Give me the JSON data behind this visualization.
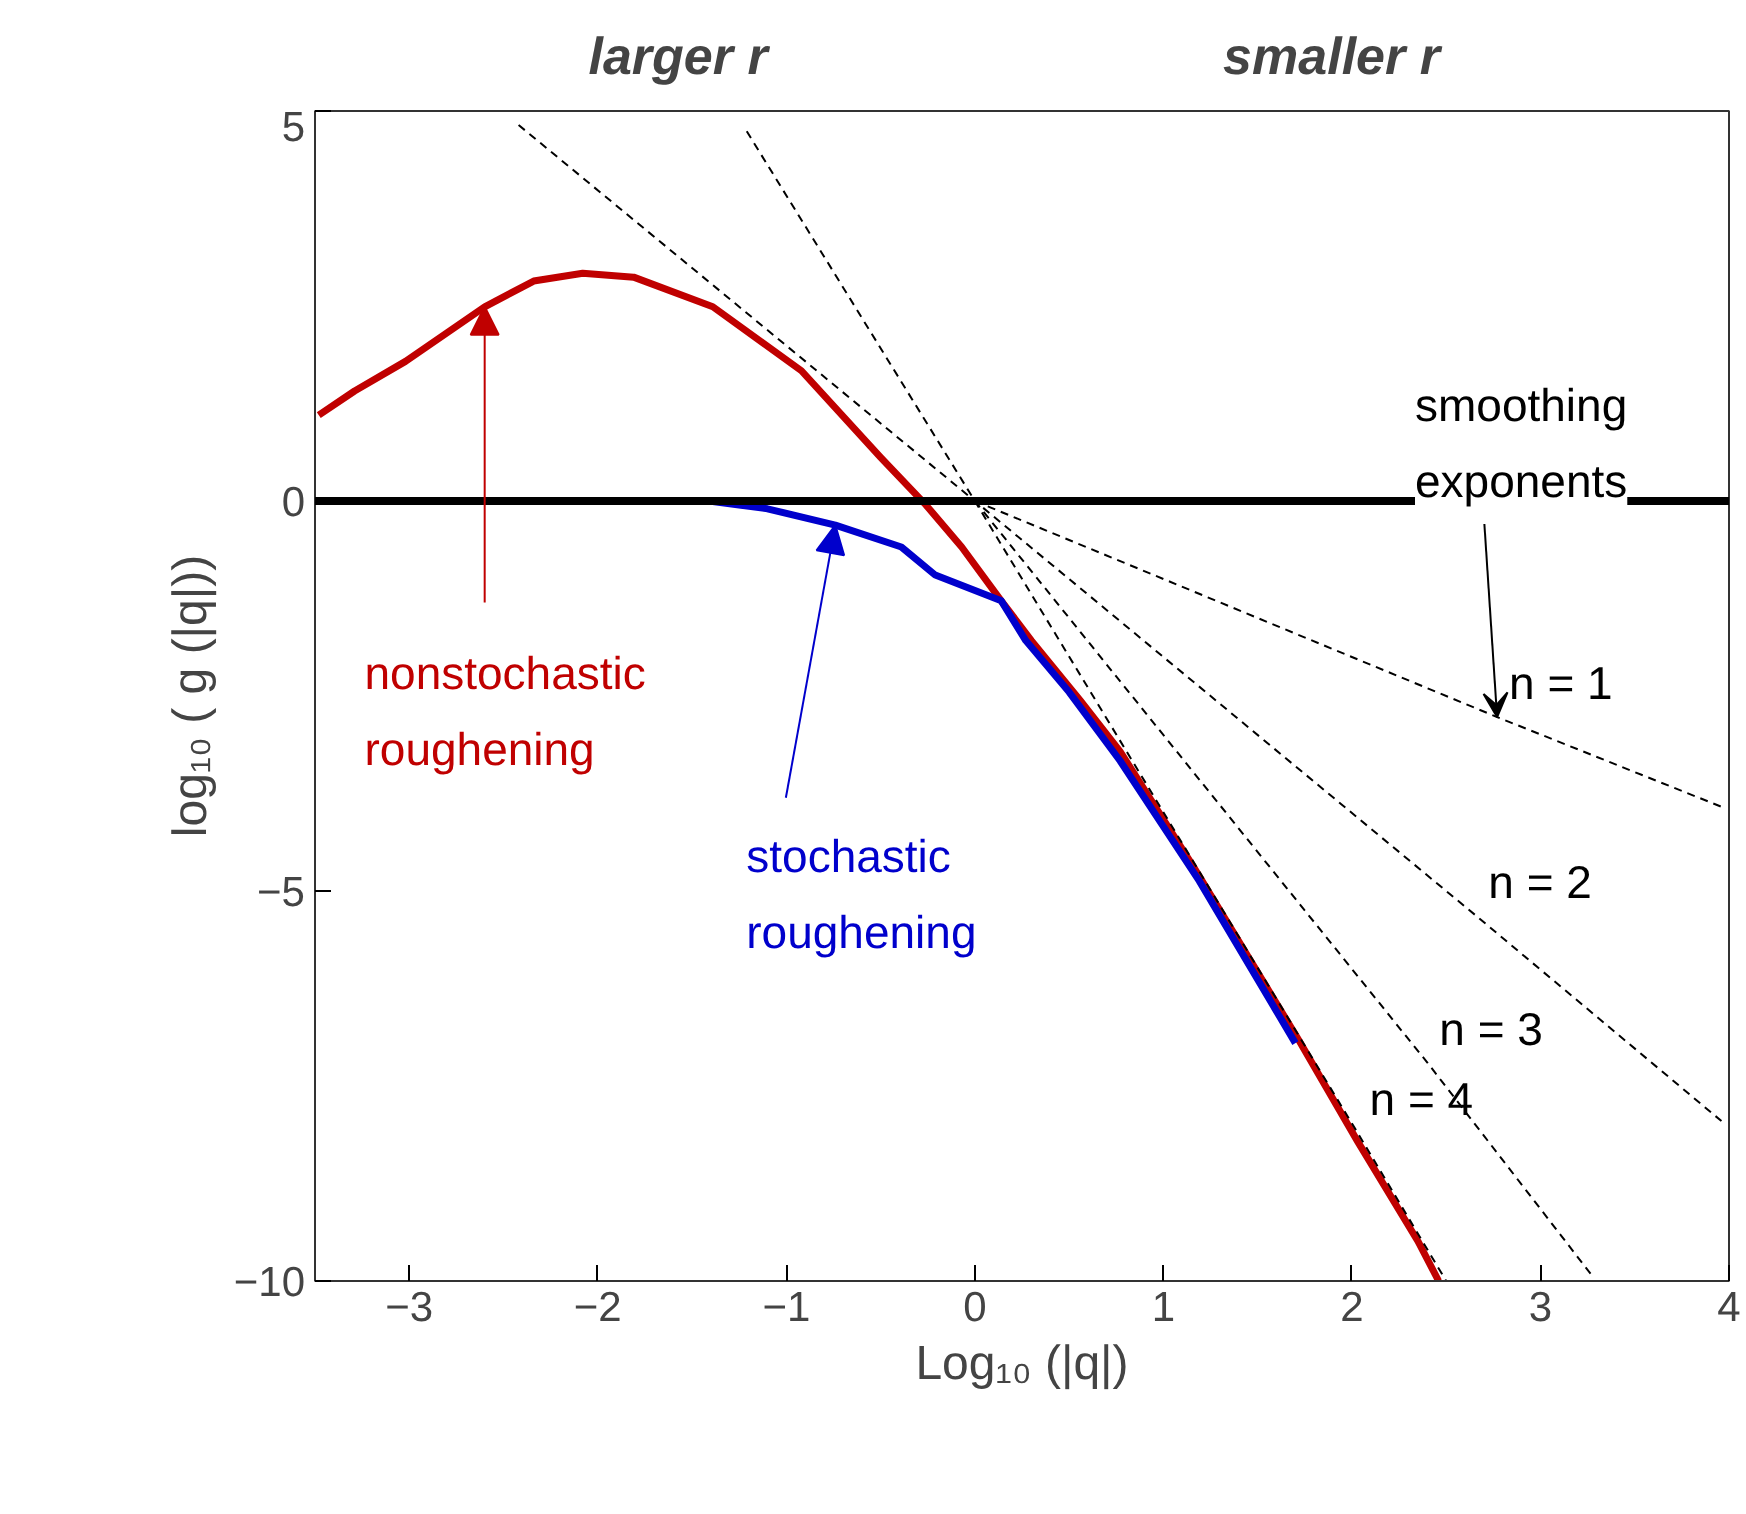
{
  "chart_data": {
    "type": "line",
    "xlabel": "Log₁₀ (|q|)",
    "ylabel": "log₁₀ ( g (|q|))",
    "xlim": [
      -3.5,
      4
    ],
    "ylim": [
      -10,
      5
    ],
    "xticks": [
      -3,
      -2,
      -1,
      0,
      1,
      2,
      3,
      4
    ],
    "yticks": [
      -10,
      -5,
      0,
      5
    ],
    "grid": false,
    "marker": "none",
    "ref_lines": [
      {
        "axis": "y",
        "value": 0,
        "color": "#000000",
        "line_style": "solid"
      }
    ],
    "series": [
      {
        "color": "#c00000",
        "x": [
          -3.48,
          -3.29,
          -3.02,
          -2.6,
          -2.34,
          -2.08,
          -1.81,
          -1.39,
          -0.92,
          -0.5,
          -0.26,
          -0.07,
          0.14,
          0.3,
          0.56,
          0.77,
          1.16,
          1.72,
          2.03,
          2.35,
          2.46
        ],
        "values": [
          1.1,
          1.41,
          1.79,
          2.49,
          2.82,
          2.92,
          2.87,
          2.49,
          1.67,
          0.56,
          -0.05,
          -0.59,
          -1.28,
          -1.79,
          -2.56,
          -3.21,
          -4.69,
          -6.92,
          -8.21,
          -9.49,
          -10
        ]
      },
      {
        "color": "#0000cc",
        "x": [
          -3.5,
          -2.5,
          -1.41,
          -1.1,
          -0.74,
          -0.39,
          -0.21,
          0.14,
          0.27,
          0.5,
          0.77,
          1.19,
          1.7
        ],
        "values": [
          0,
          0,
          0,
          -0.1,
          -0.31,
          -0.59,
          -0.95,
          -1.28,
          -1.79,
          -2.45,
          -3.33,
          -4.87,
          -6.95
        ]
      },
      {
        "name": "n = 1",
        "color": "#000000",
        "line_style": "dashed",
        "x": [
          0,
          2.77,
          3.96
        ],
        "values": [
          0,
          -2.77,
          -3.92
        ]
      },
      {
        "name": "n = 2",
        "color": "#000000",
        "line_style": "dashed",
        "x": [
          -2.42,
          0,
          2.66,
          3.96
        ],
        "values": [
          4.82,
          0,
          -5.32,
          -7.95
        ]
      },
      {
        "name": "n = 3",
        "color": "#000000",
        "line_style": "dashed",
        "x": [
          0,
          2.4,
          3.27
        ],
        "values": [
          0,
          -7.2,
          -9.92
        ]
      },
      {
        "name": "n = 4",
        "color": "#000000",
        "line_style": "dashed",
        "x": [
          -1.21,
          0,
          2.03,
          2.5
        ],
        "values": [
          4.74,
          0,
          -8.1,
          -10
        ]
      }
    ],
    "annotations": [
      {
        "text": "nonstochastic roughening",
        "x": -2.6,
        "y": 2.49
      },
      {
        "text": "stochastic roughening",
        "x": -0.74,
        "y": -0.31
      },
      {
        "text": "smoothing exponents",
        "x": 2.77,
        "y": -2.77
      },
      "larger   r",
      "smaller  r"
    ]
  }
}
